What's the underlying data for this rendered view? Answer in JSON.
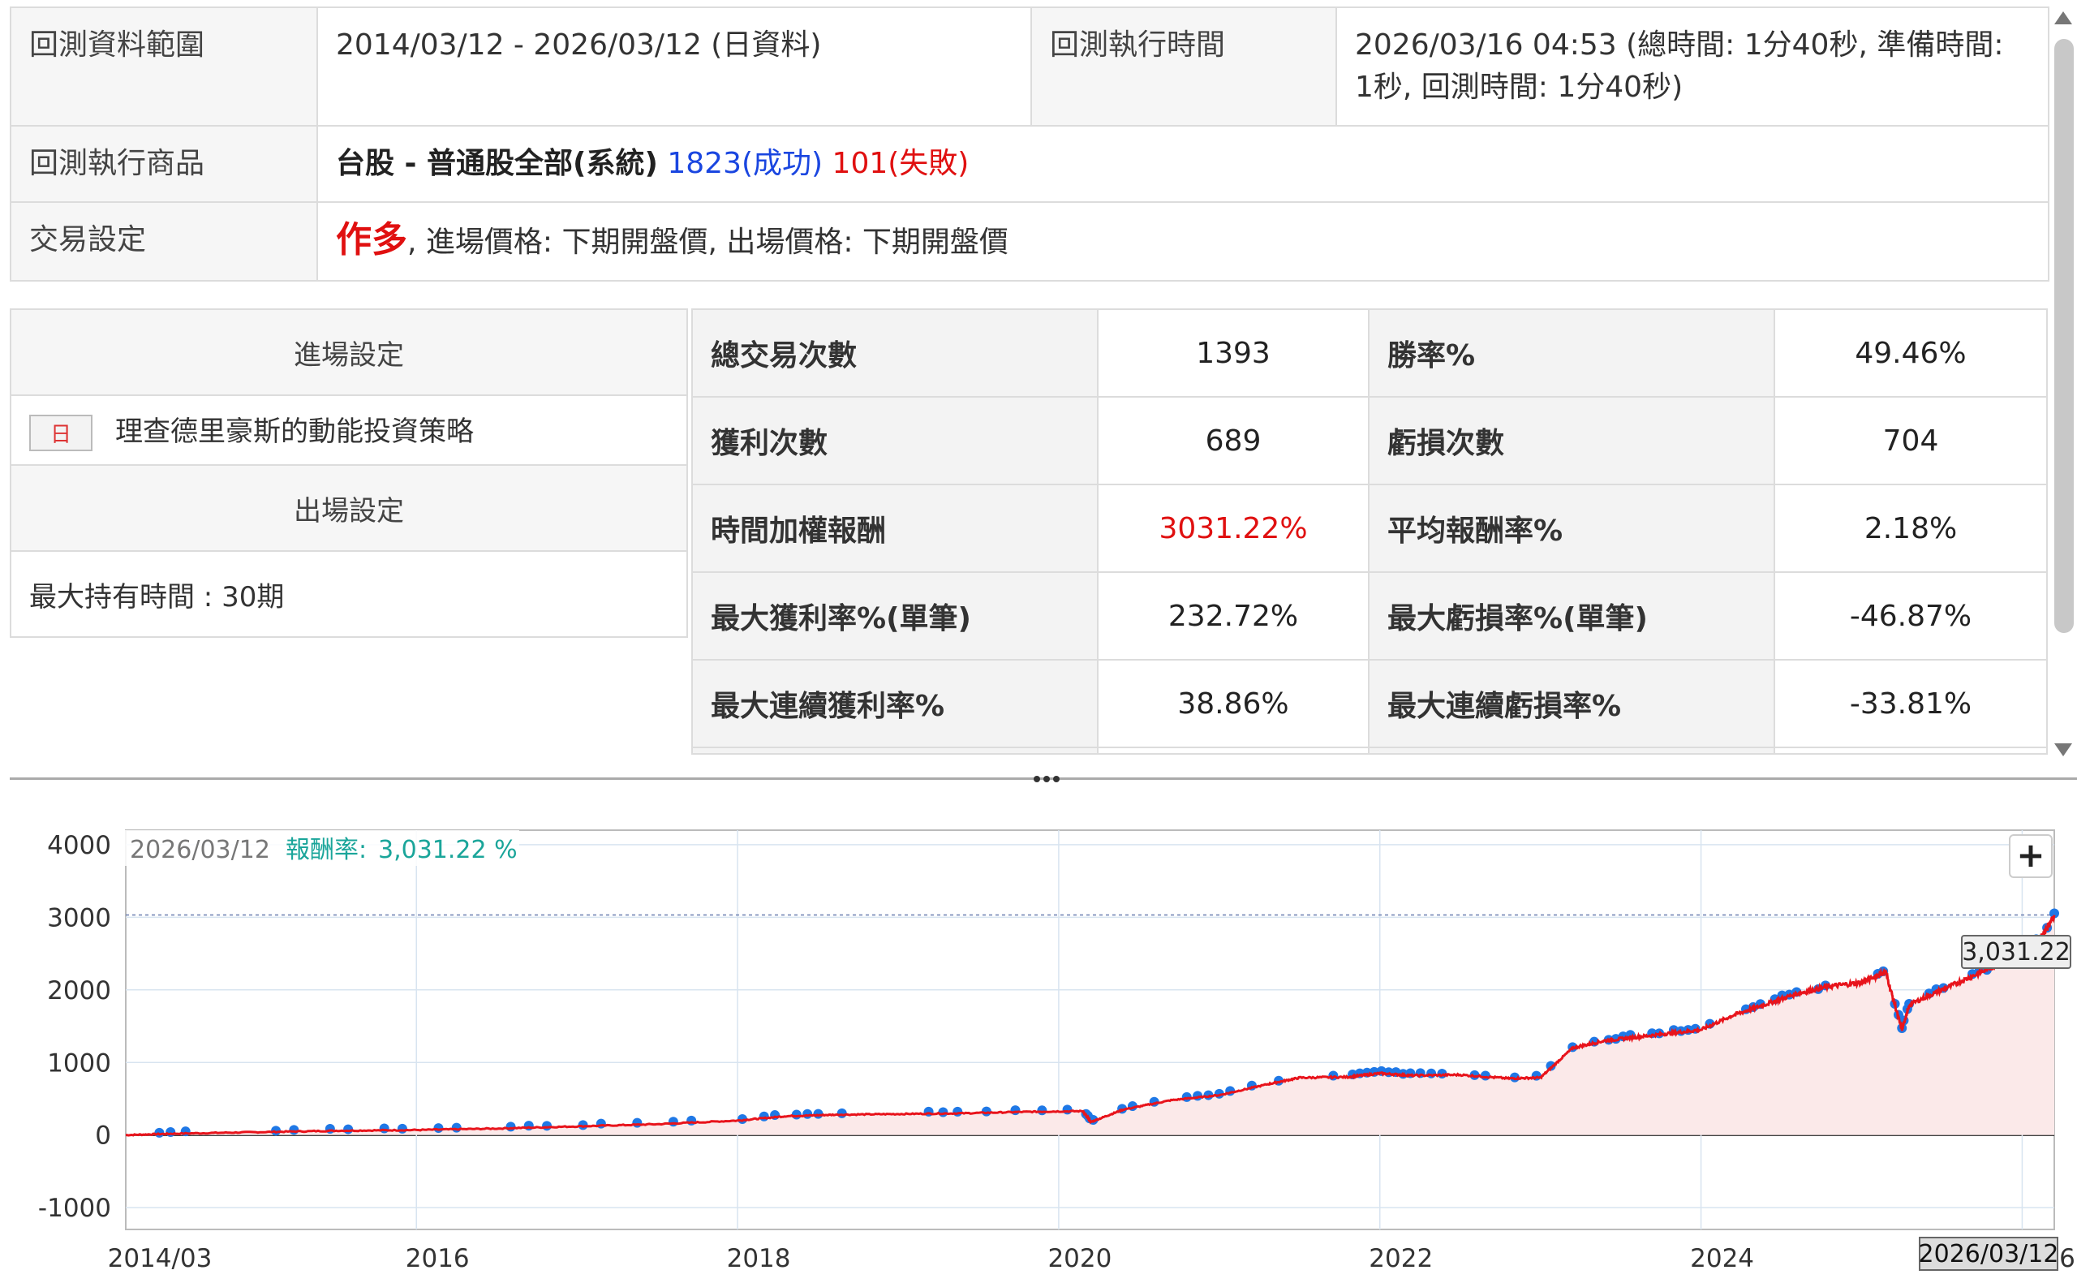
{
  "info": {
    "range_label": "回測資料範圍",
    "range_value": "2014/03/12 - 2026/03/12 (日資料)",
    "exec_time_label": "回測執行時間",
    "exec_time_value": "2026/03/16 04:53 (總時間: 1分40秒, 準備時間: 1秒, 回測時間: 1分40秒)",
    "product_label": "回測執行商品",
    "product_name": "台股 - 普通股全部(系統)",
    "product_success": "1823(成功)",
    "product_fail": "101(失敗)",
    "trade_label": "交易設定",
    "trade_direction": "作多",
    "trade_detail": ", 進場價格: 下期開盤價, 出場價格: 下期開盤價"
  },
  "settings": {
    "entry_header": "進場設定",
    "entry_tag": "日",
    "entry_strategy": "理查德里豪斯的動能投資策略",
    "exit_header": "出場設定",
    "exit_rule": "最大持有時間 : 30期"
  },
  "stats": {
    "rows": [
      {
        "l1": "總交易次數",
        "v1": "1393",
        "l2": "勝率%",
        "v2": "49.46%"
      },
      {
        "l1": "獲利次數",
        "v1": "689",
        "l2": "虧損次數",
        "v2": "704"
      },
      {
        "l1": "時間加權報酬",
        "v1": "3031.22%",
        "l2": "平均報酬率%",
        "v2": "2.18%"
      },
      {
        "l1": "最大獲利率%(單筆)",
        "v1": "232.72%",
        "l2": "最大虧損率%(單筆)",
        "v2": "-46.87%"
      },
      {
        "l1": "最大連續獲利率%",
        "v1": "38.86%",
        "l2": "最大連續虧損率%",
        "v2": "-33.81%"
      }
    ]
  },
  "chart": {
    "tooltip_date": "2026/03/12",
    "tooltip_label": "報酬率:",
    "tooltip_value": "3,031.22 %",
    "last_value_label": "3,031.22",
    "crosshair_date": "2026/03/12",
    "zoom_label": "+",
    "colors": {
      "line": "#e8141c",
      "fill": "#fbe9e9",
      "marker": "#1f78e6",
      "tooltip": "#1aa59a"
    }
  },
  "chart_data": {
    "type": "line",
    "title": "",
    "xlabel": "",
    "ylabel": "",
    "x_ticks": [
      "2014/03",
      "2016",
      "2018",
      "2020",
      "2022",
      "2024",
      "2026"
    ],
    "y_ticks": [
      4000,
      3000,
      2000,
      1000,
      0,
      -1000
    ],
    "ylim": [
      -1300,
      4200
    ],
    "xlim": [
      2014.19,
      2026.2
    ],
    "grid": true,
    "series": [
      {
        "x": [
          2014.19,
          2014.5,
          2015.0,
          2015.5,
          2016.0,
          2016.5,
          2017.0,
          2017.5,
          2018.0,
          2018.3,
          2018.6,
          2019.0,
          2019.4,
          2019.8,
          2020.15,
          2020.2,
          2020.4,
          2020.7,
          2021.0,
          2021.3,
          2021.5,
          2021.8,
          2022.0,
          2022.2,
          2022.5,
          2022.8,
          2023.0,
          2023.2,
          2023.4,
          2023.6,
          2023.8,
          2024.0,
          2024.2,
          2024.4,
          2024.6,
          2024.8,
          2025.0,
          2025.15,
          2025.25,
          2025.3,
          2025.5,
          2025.7,
          2025.9,
          2026.0,
          2026.1,
          2026.2
        ],
        "y": [
          0,
          20,
          40,
          60,
          70,
          90,
          120,
          150,
          200,
          260,
          280,
          290,
          300,
          320,
          330,
          180,
          350,
          480,
          550,
          700,
          790,
          800,
          850,
          820,
          830,
          780,
          790,
          1200,
          1300,
          1350,
          1400,
          1450,
          1650,
          1800,
          1950,
          2050,
          2100,
          2250,
          1450,
          1800,
          2000,
          2200,
          2400,
          2600,
          2650,
          3031.22
        ]
      }
    ]
  }
}
